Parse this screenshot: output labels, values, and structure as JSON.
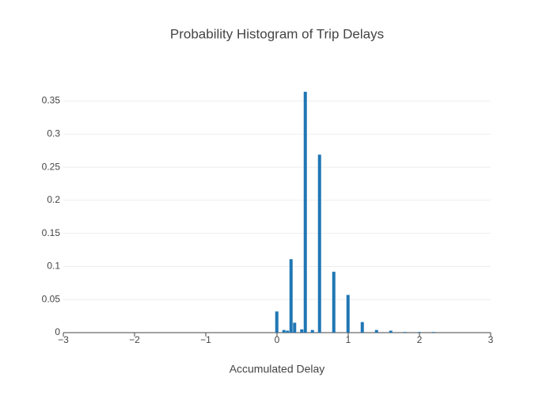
{
  "chart_data": {
    "type": "histogram",
    "title": "Probability Histogram of Trip Delays",
    "x_label": "Accumulated Delay",
    "color": "#1f77b4",
    "bins": [
      -0.025,
      0.025,
      0.075,
      0.125,
      0.175,
      0.225,
      0.275,
      0.325,
      0.375,
      0.425,
      0.475,
      0.525,
      0.575,
      0.625,
      0.675,
      0.725,
      0.775,
      0.825,
      0.875,
      0.925,
      0.975,
      1.025,
      1.075,
      1.125,
      1.175,
      1.225,
      1.275,
      1.325,
      1.375,
      1.425,
      1.475,
      1.525,
      1.575,
      1.625,
      1.675,
      1.725,
      1.775,
      1.825,
      1.875,
      1.925,
      1.975,
      2.025,
      2.075,
      2.125,
      2.175,
      2.225
    ],
    "values": [
      0.032,
      0,
      0.004,
      0.003,
      0.111,
      0.015,
      0,
      0.005,
      0.364,
      0,
      0.004,
      0,
      0.269,
      0,
      0,
      0,
      0.092,
      0,
      0,
      0,
      0.057,
      0,
      0,
      0,
      0.016,
      0,
      0,
      0,
      0.004,
      0,
      0,
      0,
      0.003,
      0,
      0,
      0,
      0.001,
      0,
      0,
      0,
      0.001,
      0,
      0,
      0,
      0.001
    ],
    "xlim": [
      -3,
      3
    ],
    "xticks": [
      {
        "value": -3,
        "label": "−3"
      },
      {
        "value": -2,
        "label": "−2"
      },
      {
        "value": -1,
        "label": "−1"
      },
      0,
      1,
      2,
      3
    ],
    "ylim": [
      0,
      0.383
    ],
    "yticks": [
      0,
      0.05,
      0.1,
      0.15,
      0.2,
      0.25,
      0.3,
      0.35
    ],
    "grid": true
  }
}
